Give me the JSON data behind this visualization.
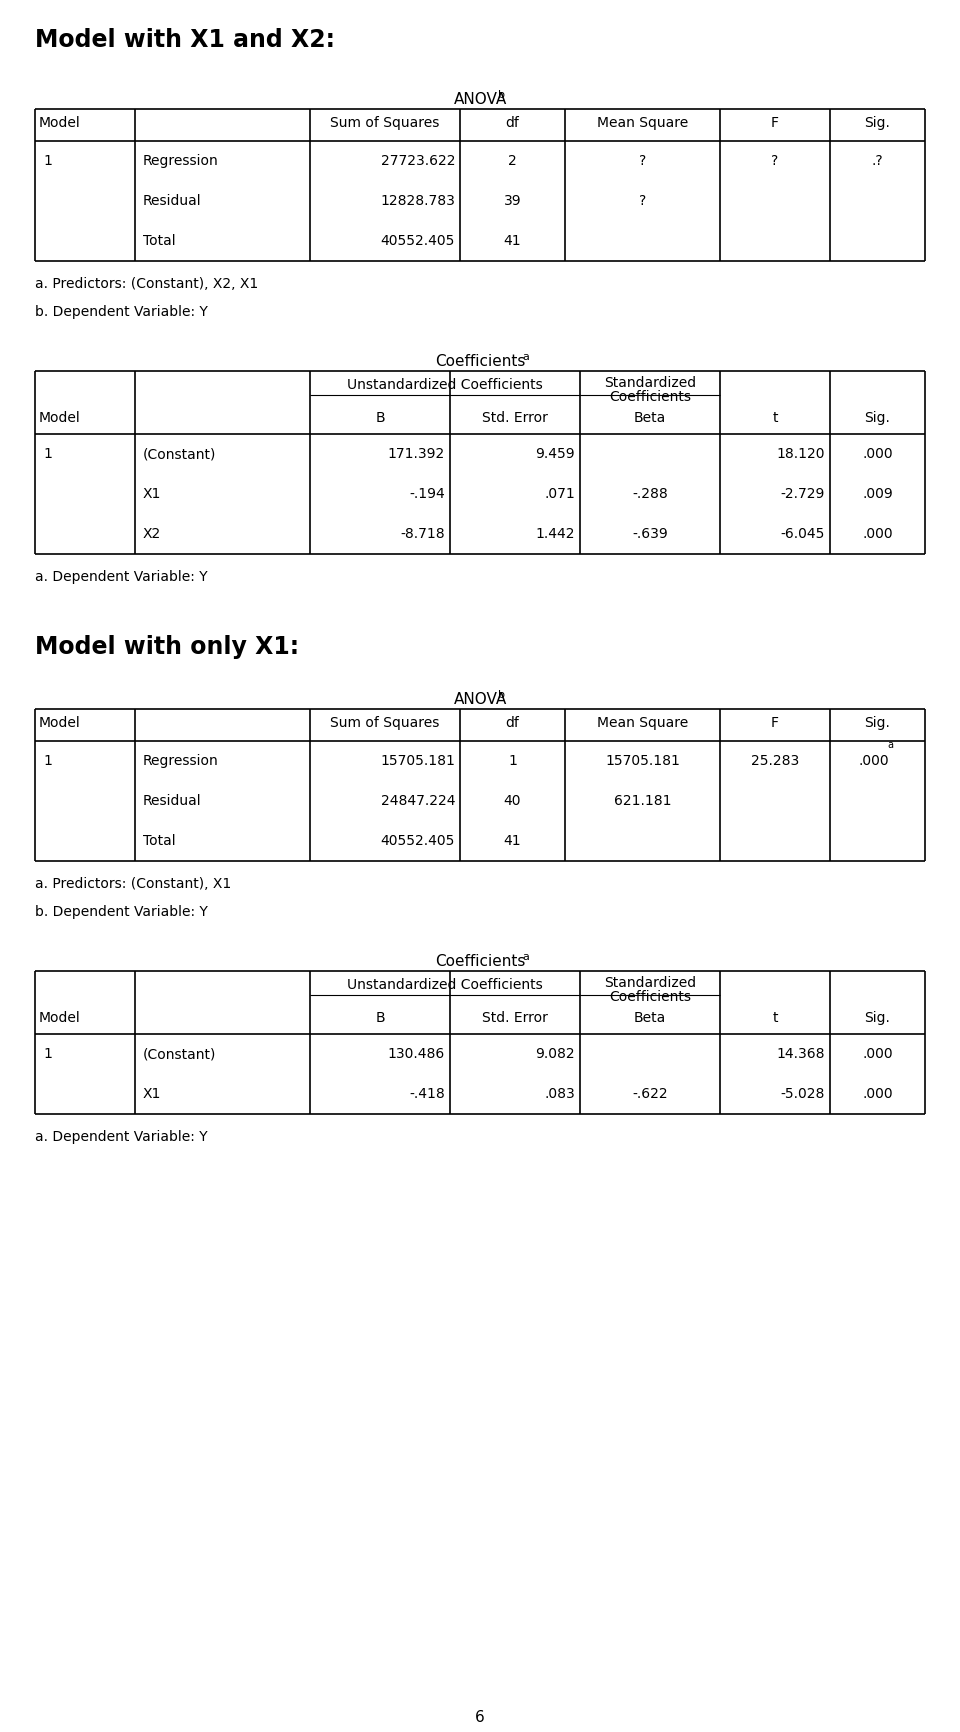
{
  "page_title1": "Model with X1 and X2:",
  "page_title2": "Model with only X1:",
  "page_number": "6",
  "bg_color": "#ffffff",
  "anova1_footnote_a": "a. Predictors: (Constant), X2, X1",
  "anova1_footnote_b": "b. Dependent Variable: Y",
  "anova1_rows": [
    [
      "1",
      "Regression",
      "27723.622",
      "2",
      "?",
      "?",
      ".?"
    ],
    [
      "",
      "Residual",
      "12828.783",
      "39",
      "?",
      "",
      ""
    ],
    [
      "",
      "Total",
      "40552.405",
      "41",
      "",
      "",
      ""
    ]
  ],
  "coeff1_rows": [
    [
      "1",
      "(Constant)",
      "171.392",
      "9.459",
      "",
      "18.120",
      ".000"
    ],
    [
      "",
      "X1",
      "-.194",
      ".071",
      "-.288",
      "-2.729",
      ".009"
    ],
    [
      "",
      "X2",
      "-8.718",
      "1.442",
      "-.639",
      "-6.045",
      ".000"
    ]
  ],
  "coeff1_footnote": "a. Dependent Variable: Y",
  "anova2_footnote_a": "a. Predictors: (Constant), X1",
  "anova2_footnote_b": "b. Dependent Variable: Y",
  "anova2_rows": [
    [
      "1",
      "Regression",
      "15705.181",
      "1",
      "15705.181",
      "25.283",
      ".000a"
    ],
    [
      "",
      "Residual",
      "24847.224",
      "40",
      "621.181",
      "",
      ""
    ],
    [
      "",
      "Total",
      "40552.405",
      "41",
      "",
      "",
      ""
    ]
  ],
  "coeff2_rows": [
    [
      "1",
      "(Constant)",
      "130.486",
      "9.082",
      "",
      "14.368",
      ".000"
    ],
    [
      "",
      "X1",
      "-.418",
      ".083",
      "-.622",
      "-5.028",
      ".000"
    ]
  ],
  "coeff2_footnote": "a. Dependent Variable: Y"
}
